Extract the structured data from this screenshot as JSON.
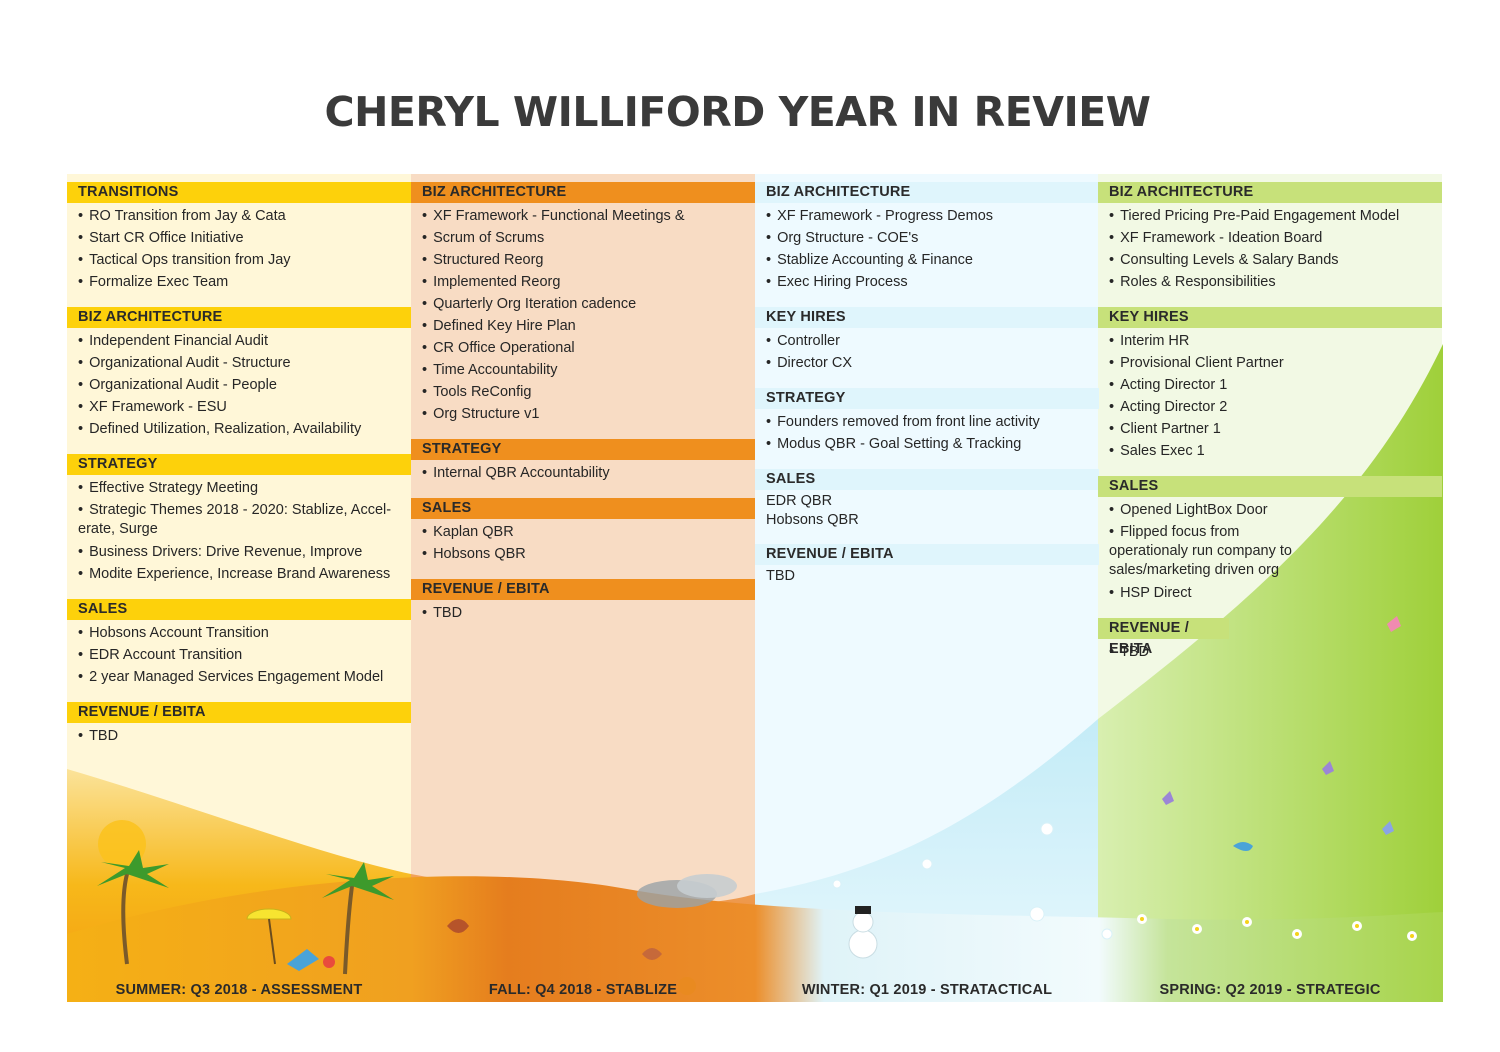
{
  "title": "CHERYL WILLIFORD YEAR IN REVIEW",
  "colors": {
    "summer_header": "#fdd10b",
    "fall_header": "#ef8f1e",
    "winter_header": "#dff5fc",
    "spring_header": "#c7e17a"
  },
  "summer": {
    "footer": "SUMMER: Q3 2018 - ASSESSMENT",
    "sections": [
      {
        "title": "TRANSITIONS",
        "items": [
          "RO Transition from Jay & Cata",
          "Start CR Office Initiative",
          "Tactical Ops transition from Jay",
          "Formalize Exec Team"
        ]
      },
      {
        "title": "BIZ ARCHITECTURE",
        "items": [
          "Independent Financial Audit",
          "Organizational Audit - Structure",
          "Organizational Audit - People",
          "XF Framework - ESU",
          "Defined Utilization, Realization, Availability"
        ]
      },
      {
        "title": "STRATEGY",
        "items": [
          "Effective Strategy Meeting",
          "Strategic Themes 2018 - 2020: Stablize, Accel-erate, Surge",
          "Business Drivers: Drive Revenue, Improve",
          "Modite Experience, Increase Brand Awareness"
        ]
      },
      {
        "title": "SALES",
        "items": [
          "Hobsons Account Transition",
          "EDR Account Transition",
          "2 year Managed Services Engagement Model"
        ]
      },
      {
        "title": "REVENUE / EBITA",
        "items": [
          "TBD"
        ]
      }
    ]
  },
  "fall": {
    "footer": "FALL: Q4 2018 - STABLIZE",
    "sections": [
      {
        "title": "BIZ ARCHITECTURE",
        "items": [
          "XF Framework - Functional Meetings &",
          "Scrum of Scrums",
          "Structured Reorg",
          "Implemented Reorg",
          "Quarterly Org Iteration cadence",
          "Defined Key Hire Plan",
          "CR Office Operational",
          "Time Accountability",
          "Tools ReConfig",
          "Org Structure v1"
        ]
      },
      {
        "title": "STRATEGY",
        "items": [
          "Internal QBR Accountability"
        ]
      },
      {
        "title": "SALES",
        "items": [
          "Kaplan QBR",
          "Hobsons QBR"
        ]
      },
      {
        "title": "REVENUE / EBITA",
        "items": [
          "TBD"
        ]
      }
    ]
  },
  "winter": {
    "footer": "WINTER: Q1 2019 - STRATACTICAL",
    "sections": [
      {
        "title": "BIZ ARCHITECTURE",
        "items": [
          "XF Framework - Progress Demos",
          "Org Structure - COE's",
          "Stablize Accounting & Finance",
          "Exec Hiring Process"
        ]
      },
      {
        "title": "KEY HIRES",
        "items": [
          "Controller",
          "Director CX"
        ]
      },
      {
        "title": "STRATEGY",
        "items": [
          "Founders removed from front line activity",
          "Modus QBR - Goal Setting & Tracking"
        ]
      },
      {
        "title": "SALES",
        "items": [
          "EDR QBR",
          "Hobsons QBR"
        ]
      },
      {
        "title": "REVENUE / EBITA",
        "items": [
          "TBD"
        ]
      }
    ]
  },
  "spring": {
    "footer": "SPRING: Q2 2019 - STRATEGIC",
    "sections": [
      {
        "title": "BIZ ARCHITECTURE",
        "items": [
          "Tiered Pricing Pre-Paid Engagement Model",
          "XF Framework - Ideation Board",
          "Consulting Levels & Salary Bands",
          "Roles & Responsibilities"
        ]
      },
      {
        "title": "KEY HIRES",
        "items": [
          "Interim HR",
          "Provisional Client Partner",
          "Acting Director 1",
          "Acting Director 2",
          "Client Partner 1",
          "Sales Exec 1"
        ]
      },
      {
        "title": "SALES",
        "items": [
          "Opened LightBox Door",
          "Flipped focus from operationaly run company to sales/marketing driven org",
          "HSP Direct"
        ]
      },
      {
        "title": "REVENUE / EBITA",
        "items": [
          "TBD"
        ]
      }
    ]
  }
}
